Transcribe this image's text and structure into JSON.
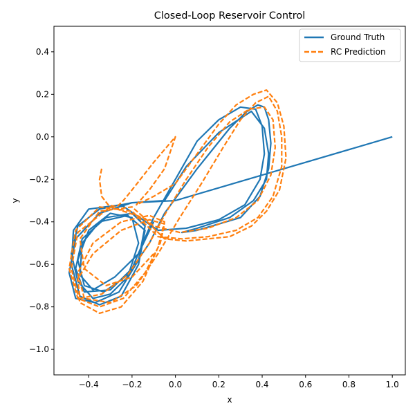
{
  "chart_data": {
    "type": "line",
    "title": "Closed-Loop Reservoir Control",
    "xlabel": "x",
    "ylabel": "y",
    "xlim": [
      -0.56,
      1.06
    ],
    "ylim": [
      -1.12,
      0.52
    ],
    "xticks": [
      -0.4,
      -0.2,
      0.0,
      0.2,
      0.4,
      0.6,
      0.8,
      1.0
    ],
    "yticks": [
      0.4,
      0.2,
      0.0,
      -0.2,
      -0.4,
      -0.6,
      -0.8,
      -1.0
    ],
    "xtick_labels": [
      "−0.4",
      "−0.2",
      "0.0",
      "0.2",
      "0.4",
      "0.6",
      "0.8",
      "1.0"
    ],
    "ytick_labels": [
      "0.4",
      "0.2",
      "0.0",
      "−0.2",
      "−0.4",
      "−0.6",
      "−0.8",
      "−1.0"
    ],
    "grid": false,
    "legend_position": "top-right",
    "series": [
      {
        "name": "Ground Truth",
        "color": "#1f77b4",
        "style": "solid",
        "x": [
          1.0,
          0.6,
          0.3,
          0.0,
          -0.2,
          -0.35,
          -0.45,
          -0.48,
          -0.45,
          -0.38,
          -0.3,
          -0.22,
          -0.17,
          -0.2,
          -0.3,
          -0.4,
          -0.45,
          -0.42,
          -0.33,
          -0.22,
          -0.12,
          -0.05,
          0.1,
          0.25,
          0.33,
          0.38,
          0.41,
          0.43,
          0.44,
          0.43,
          0.39,
          0.3,
          0.2,
          0.1,
          0.03,
          0.1,
          0.25,
          0.36,
          0.42,
          0.43,
          0.41,
          0.35,
          0.2,
          0.05,
          -0.05,
          -0.2,
          -0.35,
          -0.46,
          -0.49,
          -0.46,
          -0.37,
          -0.26,
          -0.17,
          -0.14,
          -0.2,
          -0.32,
          -0.43,
          -0.46,
          -0.42,
          -0.3,
          -0.2,
          -0.1,
          0.0,
          0.1,
          0.2,
          0.3,
          0.37,
          0.4,
          0.41,
          0.39,
          0.32,
          0.2,
          0.05,
          -0.08,
          -0.25,
          -0.4,
          -0.47,
          -0.48,
          -0.44,
          -0.35,
          -0.25,
          -0.17,
          -0.14,
          -0.22,
          -0.35,
          -0.43,
          -0.44,
          -0.38,
          -0.28,
          -0.17,
          -0.1
        ],
        "y": [
          0.0,
          -0.12,
          -0.21,
          -0.3,
          -0.31,
          -0.34,
          -0.42,
          -0.55,
          -0.68,
          -0.76,
          -0.74,
          -0.66,
          -0.5,
          -0.38,
          -0.36,
          -0.44,
          -0.58,
          -0.7,
          -0.73,
          -0.65,
          -0.5,
          -0.36,
          -0.15,
          0.04,
          0.12,
          0.15,
          0.14,
          0.08,
          -0.03,
          -0.15,
          -0.28,
          -0.38,
          -0.41,
          -0.44,
          -0.45,
          -0.43,
          -0.38,
          -0.3,
          -0.2,
          -0.08,
          0.04,
          0.12,
          0.02,
          -0.14,
          -0.3,
          -0.31,
          -0.36,
          -0.48,
          -0.64,
          -0.76,
          -0.78,
          -0.73,
          -0.58,
          -0.42,
          -0.36,
          -0.38,
          -0.48,
          -0.62,
          -0.73,
          -0.72,
          -0.62,
          -0.38,
          -0.2,
          -0.02,
          0.08,
          0.14,
          0.13,
          0.05,
          -0.08,
          -0.2,
          -0.32,
          -0.39,
          -0.43,
          -0.44,
          -0.32,
          -0.34,
          -0.44,
          -0.6,
          -0.75,
          -0.79,
          -0.75,
          -0.6,
          -0.44,
          -0.37,
          -0.4,
          -0.5,
          -0.65,
          -0.72,
          -0.66,
          -0.55,
          -0.4
        ]
      },
      {
        "name": "RC Prediction",
        "color": "#ff7f0e",
        "style": "dashed",
        "x": [
          -0.34,
          -0.35,
          -0.34,
          -0.31,
          -0.27,
          -0.24,
          -0.2,
          -0.1,
          0.0,
          -0.05,
          -0.12,
          -0.18,
          -0.1,
          0.0,
          0.1,
          0.2,
          0.28,
          0.36,
          0.42,
          0.47,
          0.5,
          0.51,
          0.48,
          0.42,
          0.35,
          0.25,
          0.15,
          0.05,
          -0.05,
          -0.15,
          -0.3,
          -0.45,
          -0.48,
          -0.44,
          -0.35,
          -0.25,
          -0.15,
          -0.08,
          -0.05,
          -0.12,
          -0.25,
          -0.38,
          -0.45,
          -0.42,
          -0.3,
          -0.18,
          -0.08,
          0.02,
          0.12,
          0.22,
          0.3,
          0.37,
          0.43,
          0.47,
          0.49,
          0.49,
          0.45,
          0.38,
          0.28,
          0.15,
          0.03,
          -0.08,
          -0.2,
          -0.35,
          -0.46,
          -0.49,
          -0.45,
          -0.35,
          -0.24,
          -0.14,
          -0.07,
          -0.05,
          -0.12,
          -0.25,
          -0.38,
          -0.45,
          -0.44,
          -0.34,
          -0.22,
          -0.12,
          -0.04,
          0.05,
          0.15,
          0.25,
          0.34,
          0.41,
          0.45,
          0.46,
          0.44,
          0.38,
          0.28,
          0.15,
          0.02,
          -0.1,
          -0.2,
          -0.35,
          -0.44,
          -0.42,
          -0.32,
          -0.2,
          -0.1
        ],
        "y": [
          -0.15,
          -0.2,
          -0.28,
          -0.32,
          -0.33,
          -0.3,
          -0.25,
          -0.12,
          0.0,
          -0.15,
          -0.25,
          -0.32,
          -0.28,
          -0.22,
          -0.08,
          0.06,
          0.15,
          0.2,
          0.22,
          0.16,
          0.05,
          -0.1,
          -0.25,
          -0.35,
          -0.42,
          -0.47,
          -0.48,
          -0.49,
          -0.48,
          -0.38,
          -0.33,
          -0.45,
          -0.62,
          -0.78,
          -0.83,
          -0.8,
          -0.68,
          -0.52,
          -0.4,
          -0.37,
          -0.4,
          -0.5,
          -0.64,
          -0.76,
          -0.78,
          -0.7,
          -0.55,
          -0.38,
          -0.22,
          -0.05,
          0.08,
          0.16,
          0.19,
          0.12,
          0.0,
          -0.14,
          -0.28,
          -0.38,
          -0.44,
          -0.47,
          -0.48,
          -0.47,
          -0.35,
          -0.33,
          -0.44,
          -0.62,
          -0.76,
          -0.8,
          -0.76,
          -0.64,
          -0.5,
          -0.41,
          -0.39,
          -0.44,
          -0.55,
          -0.67,
          -0.76,
          -0.74,
          -0.65,
          -0.5,
          -0.35,
          -0.2,
          -0.05,
          0.07,
          0.13,
          0.14,
          0.08,
          -0.05,
          -0.18,
          -0.3,
          -0.38,
          -0.43,
          -0.45,
          -0.42,
          -0.33,
          -0.35,
          -0.48,
          -0.62,
          -0.7,
          -0.66,
          -0.55
        ]
      }
    ]
  }
}
